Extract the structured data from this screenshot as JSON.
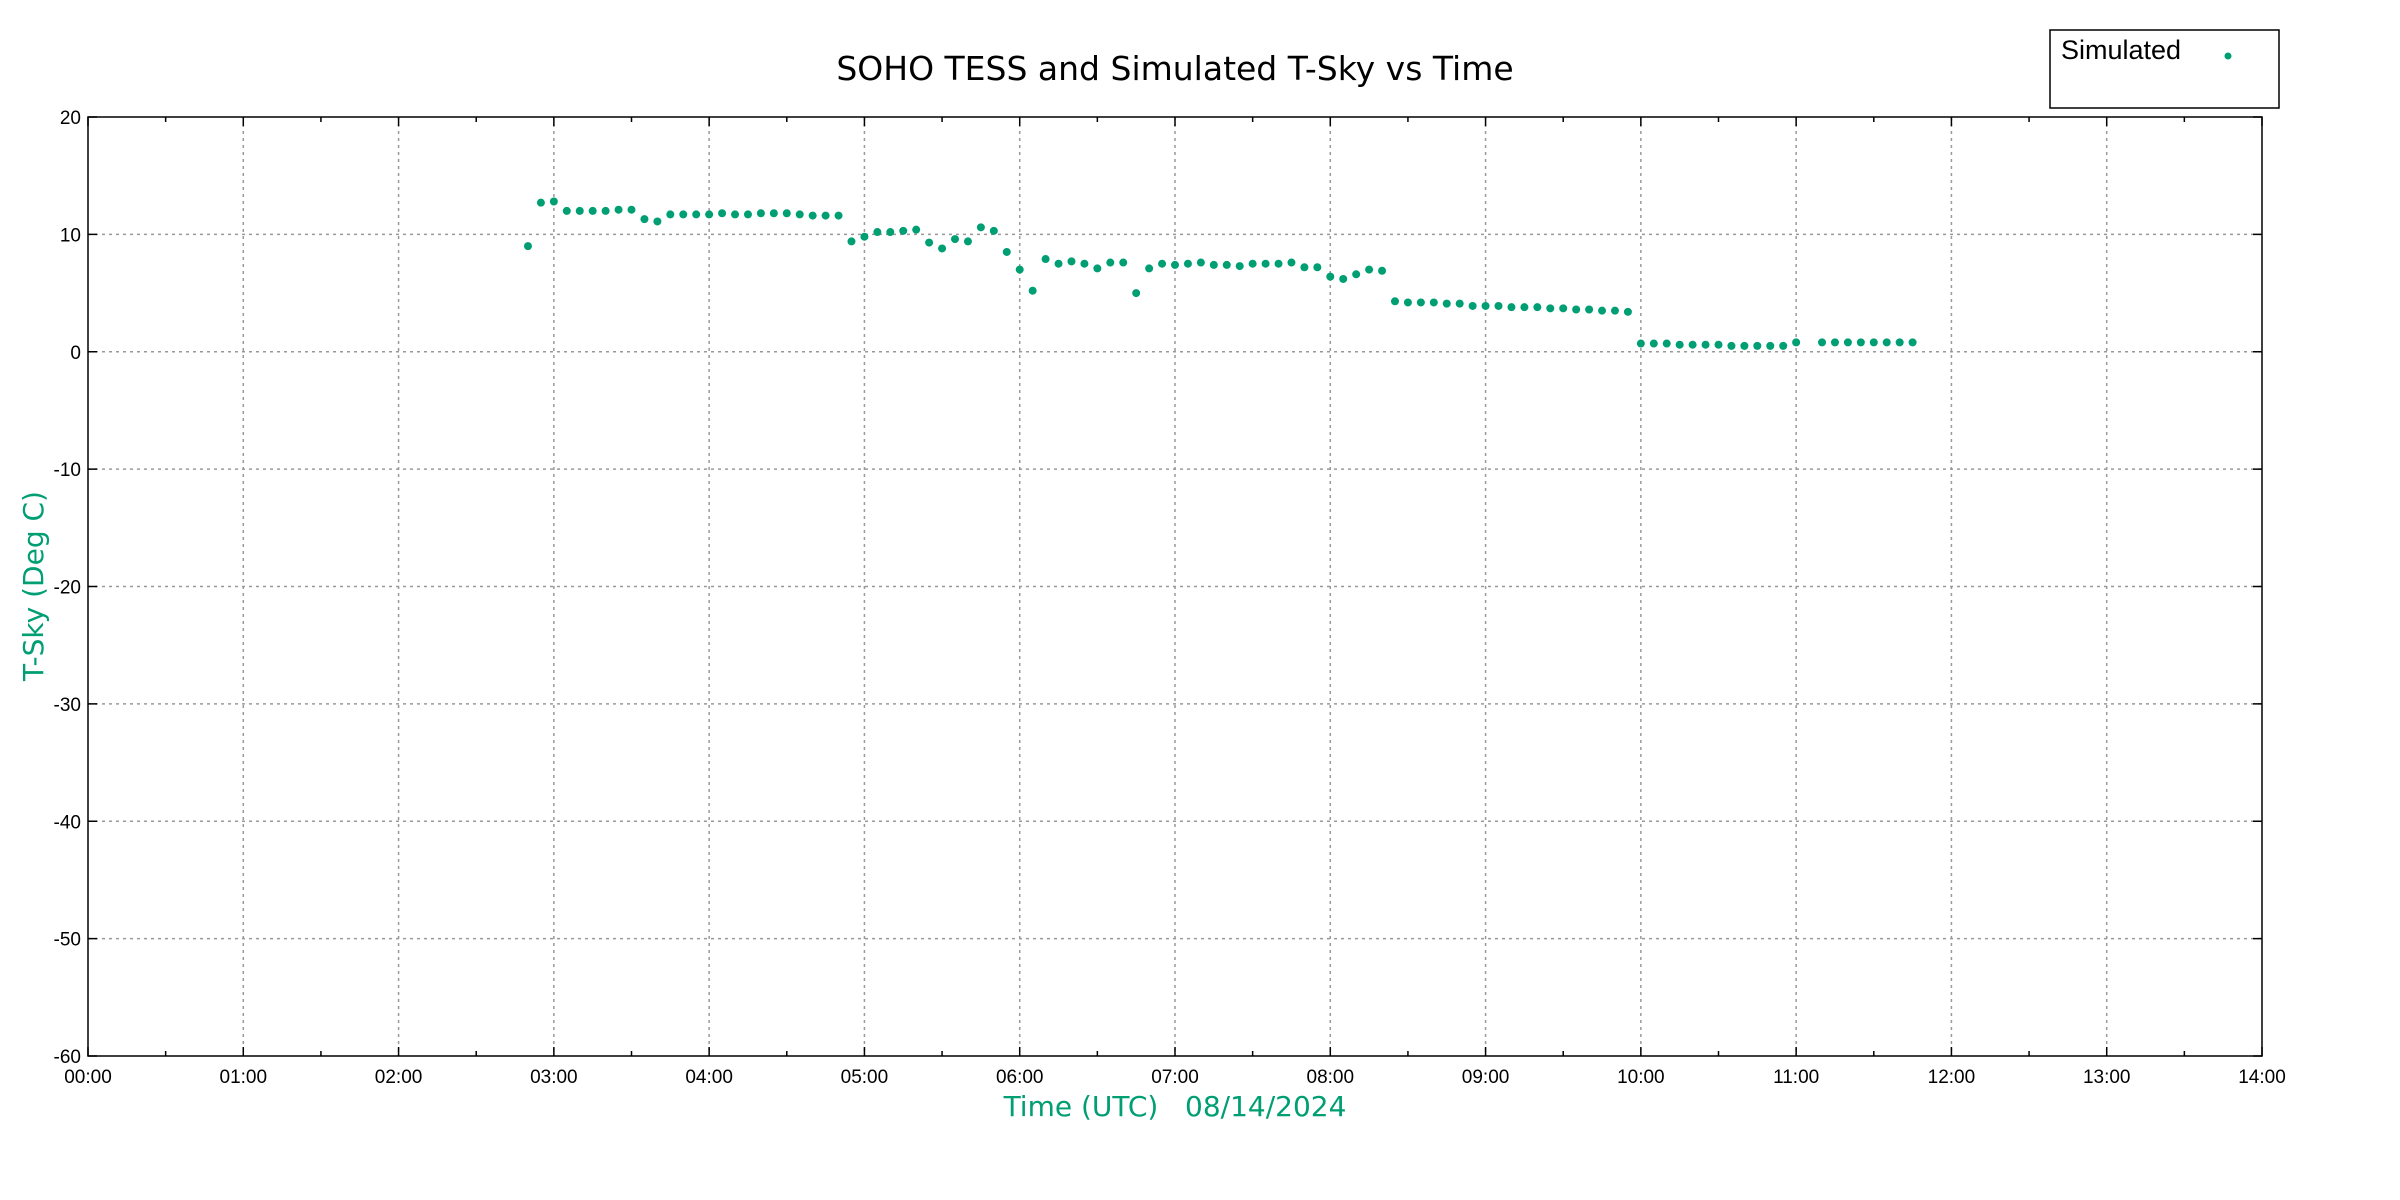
{
  "chart_data": {
    "type": "scatter",
    "title": "SOHO TESS and Simulated T-Sky vs Time",
    "xlabel": "Time (UTC)   08/14/2024",
    "ylabel": "T-Sky (Deg C)",
    "x_units": "minutes since 00:00 UTC",
    "xlim": [
      0,
      840
    ],
    "ylim": [
      -60,
      20
    ],
    "grid": true,
    "legend_position": "top-right",
    "x_ticks": [
      "00:00",
      "01:00",
      "02:00",
      "03:00",
      "04:00",
      "05:00",
      "06:00",
      "07:00",
      "08:00",
      "09:00",
      "10:00",
      "11:00",
      "12:00",
      "13:00",
      "14:00"
    ],
    "y_ticks": [
      "20",
      "10",
      "0",
      "-10",
      "-20",
      "-30",
      "-40",
      "-50",
      "-60"
    ],
    "series": [
      {
        "name": "Simulated",
        "color": "#009e73",
        "x": [
          170,
          175,
          180,
          185,
          190,
          195,
          200,
          205,
          210,
          215,
          220,
          225,
          230,
          235,
          240,
          245,
          250,
          255,
          260,
          265,
          270,
          275,
          280,
          285,
          290,
          295,
          300,
          305,
          310,
          315,
          320,
          325,
          330,
          335,
          340,
          345,
          350,
          355,
          360,
          365,
          370,
          375,
          380,
          385,
          390,
          395,
          400,
          405,
          410,
          415,
          420,
          425,
          430,
          435,
          440,
          445,
          450,
          455,
          460,
          465,
          470,
          475,
          480,
          485,
          490,
          495,
          500,
          505,
          510,
          515,
          520,
          525,
          530,
          535,
          540,
          545,
          550,
          555,
          560,
          565,
          570,
          575,
          580,
          585,
          590,
          595,
          600,
          605,
          610,
          615,
          620,
          625,
          630,
          635,
          640,
          645,
          650,
          655,
          660,
          670,
          675,
          680,
          685,
          690,
          695,
          700,
          705
        ],
        "y": [
          9.0,
          12.7,
          12.8,
          12.0,
          12.0,
          12.0,
          12.0,
          12.1,
          12.1,
          11.3,
          11.1,
          11.7,
          11.7,
          11.7,
          11.7,
          11.8,
          11.7,
          11.7,
          11.8,
          11.8,
          11.8,
          11.7,
          11.6,
          11.6,
          11.6,
          9.4,
          9.8,
          10.2,
          10.2,
          10.3,
          10.4,
          9.3,
          8.8,
          9.6,
          9.4,
          10.6,
          10.3,
          8.5,
          7.0,
          5.2,
          7.9,
          7.5,
          7.7,
          7.5,
          7.1,
          7.6,
          7.6,
          5.0,
          7.1,
          7.5,
          7.4,
          7.5,
          7.6,
          7.4,
          7.4,
          7.3,
          7.5,
          7.5,
          7.5,
          7.6,
          7.2,
          7.2,
          6.4,
          6.2,
          6.6,
          7.0,
          6.9,
          4.3,
          4.2,
          4.2,
          4.2,
          4.1,
          4.1,
          3.9,
          3.9,
          3.9,
          3.8,
          3.8,
          3.8,
          3.7,
          3.7,
          3.6,
          3.6,
          3.5,
          3.5,
          3.4,
          0.7,
          0.7,
          0.7,
          0.6,
          0.6,
          0.6,
          0.6,
          0.5,
          0.5,
          0.5,
          0.5,
          0.5,
          0.8,
          0.8,
          0.8,
          0.8,
          0.8,
          0.8,
          0.8,
          0.8,
          0.8
        ]
      }
    ]
  }
}
